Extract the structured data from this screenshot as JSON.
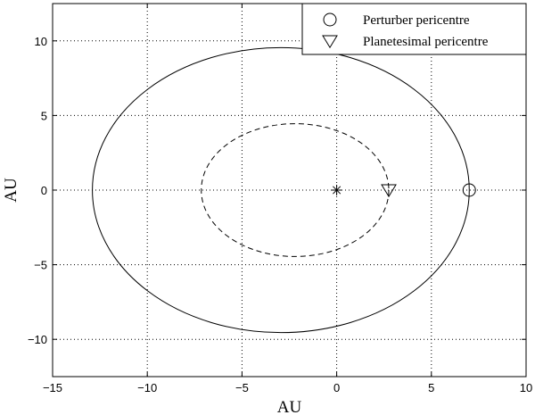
{
  "chart_data": {
    "type": "line",
    "title": "",
    "xlabel": "AU",
    "ylabel": "AU",
    "xlim": [
      -15,
      10
    ],
    "ylim": [
      -12.5,
      12.5
    ],
    "xticks": [
      -15,
      -10,
      -5,
      0,
      5,
      10
    ],
    "yticks": [
      -10,
      -5,
      0,
      5,
      10
    ],
    "xtick_labels": [
      "−15",
      "−10",
      "−5",
      "0",
      "5",
      "10"
    ],
    "ytick_labels": [
      "−10",
      "−5",
      "0",
      "5",
      "10"
    ],
    "grid": true,
    "legend_position": "top-right",
    "series": [
      {
        "name": "",
        "kind": "ellipse",
        "style": "solid",
        "center": [
          -2.95,
          0
        ],
        "semi_axes": [
          9.95,
          9.55
        ]
      },
      {
        "name": "",
        "kind": "ellipse",
        "style": "dashed",
        "center": [
          -2.2,
          0
        ],
        "semi_axes": [
          4.95,
          4.45
        ]
      }
    ],
    "markers": [
      {
        "name": "star",
        "symbol": "asterisk",
        "x": 0,
        "y": 0
      },
      {
        "name": "Perturber pericentre",
        "symbol": "circle",
        "x": 7.0,
        "y": 0
      },
      {
        "name": "Planetesimal pericentre",
        "symbol": "triangle-down",
        "x": 2.75,
        "y": 0
      }
    ],
    "legend": [
      {
        "symbol": "circle",
        "label": "Perturber pericentre"
      },
      {
        "symbol": "triangle-down",
        "label": "Planetesimal pericentre"
      }
    ]
  }
}
